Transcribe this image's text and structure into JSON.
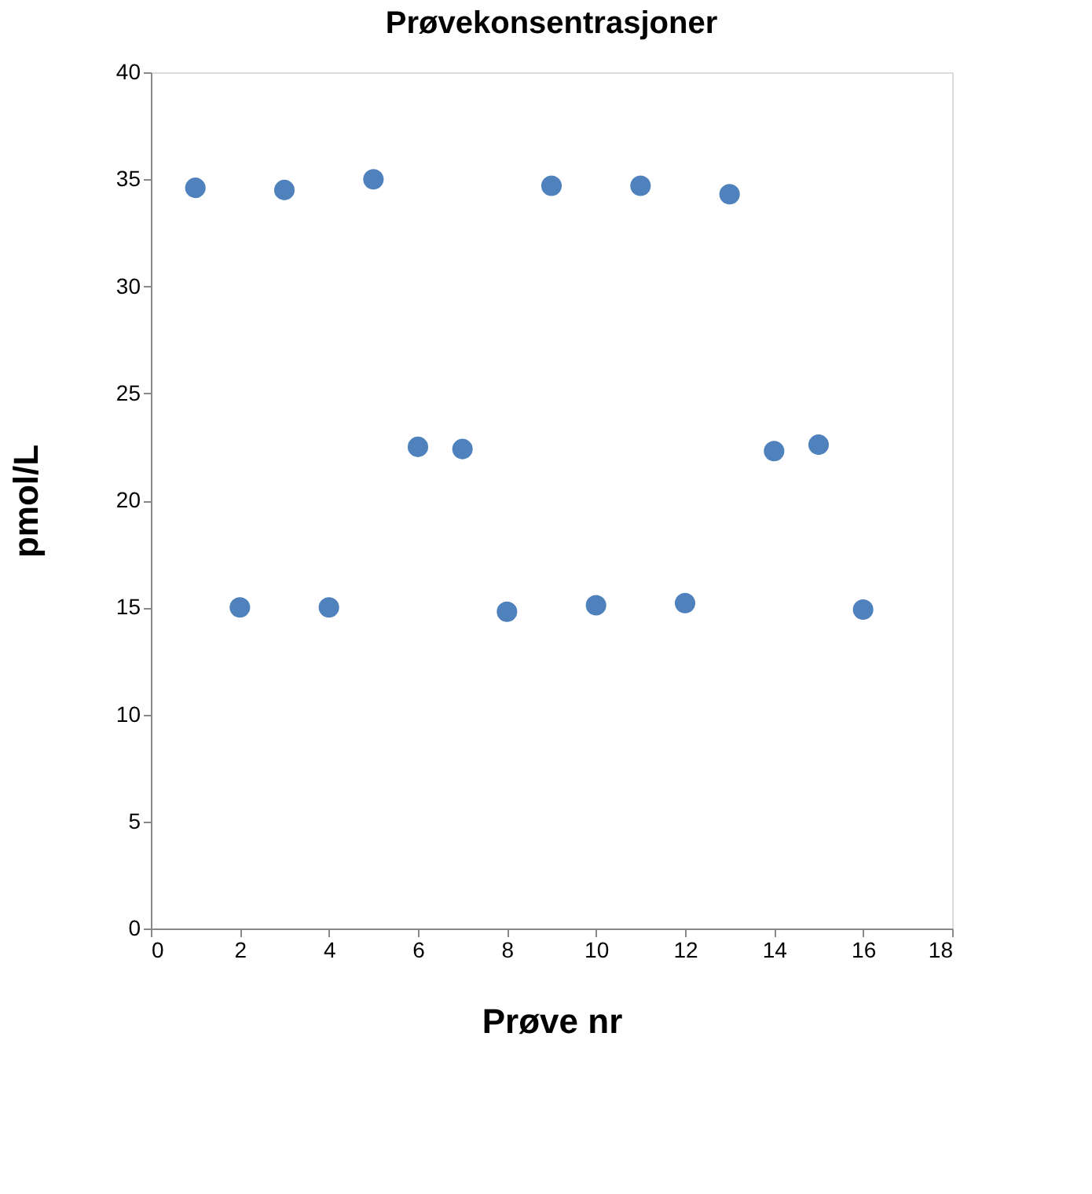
{
  "chart_data": {
    "type": "scatter",
    "title": "Prøvekonsentrasjoner",
    "xlabel": "Prøve nr",
    "ylabel": "pmol/L",
    "x": [
      1,
      2,
      3,
      4,
      5,
      6,
      7,
      8,
      9,
      10,
      11,
      12,
      13,
      14,
      15,
      16
    ],
    "series": [
      {
        "color": "#4f81bd",
        "values": [
          34.6,
          15.0,
          34.5,
          15.0,
          35.0,
          22.5,
          22.4,
          14.8,
          34.7,
          15.1,
          34.7,
          15.2,
          34.3,
          22.3,
          22.6,
          14.9
        ]
      }
    ],
    "xlim": [
      0,
      18
    ],
    "xticks": [
      0,
      2,
      4,
      6,
      8,
      10,
      12,
      14,
      16,
      18
    ],
    "ylim": [
      0,
      40
    ],
    "yticks": [
      0,
      5,
      10,
      15,
      20,
      25,
      30,
      35,
      40
    ],
    "grid": false,
    "legend": false,
    "marker": "circle"
  }
}
